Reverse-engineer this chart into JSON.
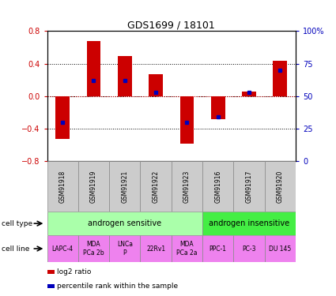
{
  "title": "GDS1699 / 18101",
  "samples": [
    "GSM91918",
    "GSM91919",
    "GSM91921",
    "GSM91922",
    "GSM91923",
    "GSM91916",
    "GSM91917",
    "GSM91920"
  ],
  "log2_ratio": [
    -0.52,
    0.68,
    0.49,
    0.27,
    -0.58,
    -0.28,
    0.06,
    0.44
  ],
  "percentile_rank": [
    30,
    62,
    62,
    53,
    30,
    34,
    53,
    70
  ],
  "ylim": [
    -0.8,
    0.8
  ],
  "yticks_left": [
    -0.8,
    -0.4,
    0,
    0.4,
    0.8
  ],
  "yticks_right": [
    0,
    25,
    50,
    75,
    100
  ],
  "cell_types": [
    {
      "label": "androgen sensitive",
      "span": [
        0,
        5
      ],
      "color": "#aaffaa"
    },
    {
      "label": "androgen insensitive",
      "span": [
        5,
        8
      ],
      "color": "#44ee44"
    }
  ],
  "cell_lines": [
    {
      "label": "LAPC-4",
      "col": 0
    },
    {
      "label": "MDA\nPCa 2b",
      "col": 1
    },
    {
      "label": "LNCa\nP",
      "col": 2
    },
    {
      "label": "22Rv1",
      "col": 3
    },
    {
      "label": "MDA\nPCa 2a",
      "col": 4
    },
    {
      "label": "PPC-1",
      "col": 5
    },
    {
      "label": "PC-3",
      "col": 6
    },
    {
      "label": "DU 145",
      "col": 7
    }
  ],
  "cell_line_color": "#EE82EE",
  "sample_box_color": "#CCCCCC",
  "bar_color": "#CC0000",
  "blue_color": "#0000BB",
  "left_axis_color": "#CC0000",
  "right_axis_color": "#0000BB",
  "bar_width": 0.45,
  "legend_items": [
    {
      "label": "log2 ratio",
      "color": "#CC0000"
    },
    {
      "label": "percentile rank within the sample",
      "color": "#0000BB"
    }
  ]
}
